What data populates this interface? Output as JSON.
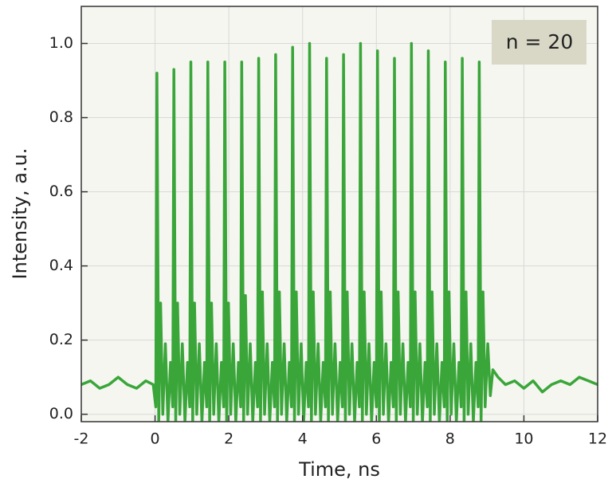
{
  "chart_data": {
    "type": "line",
    "x_label": "Time, ns",
    "y_label": "Intensity, a.u.",
    "annotation": "n = 20",
    "xlim": [
      -2,
      12
    ],
    "ylim": [
      -0.02,
      1.1
    ],
    "xticks": [
      -2,
      0,
      2,
      4,
      6,
      8,
      10,
      12
    ],
    "yticks": [
      {
        "value": 0,
        "label": "0.0"
      },
      0.2,
      0.4,
      0.6,
      0.8,
      {
        "value": 1,
        "label": "1.0"
      }
    ],
    "grid": true,
    "series": [
      {
        "color": "#3aa63a",
        "x": [
          -2,
          -1.75,
          -1.5,
          -1.25,
          -1,
          -0.75,
          -0.5,
          -0.25,
          -0.05,
          0.02,
          0.05,
          0.1,
          0.15,
          0.21,
          0.28,
          0.35,
          0.42,
          0.48,
          0.51,
          0.56,
          0.61,
          0.67,
          0.74,
          0.81,
          0.88,
          0.94,
          0.97,
          1.02,
          1.07,
          1.13,
          1.2,
          1.27,
          1.34,
          1.4,
          1.43,
          1.48,
          1.53,
          1.59,
          1.66,
          1.73,
          1.8,
          1.86,
          1.89,
          1.94,
          1.99,
          2.05,
          2.12,
          2.19,
          2.26,
          2.32,
          2.35,
          2.4,
          2.45,
          2.51,
          2.58,
          2.65,
          2.72,
          2.78,
          2.81,
          2.86,
          2.91,
          2.97,
          3.04,
          3.11,
          3.18,
          3.24,
          3.27,
          3.32,
          3.37,
          3.43,
          3.5,
          3.57,
          3.64,
          3.7,
          3.73,
          3.78,
          3.83,
          3.89,
          3.96,
          4.03,
          4.1,
          4.16,
          4.19,
          4.24,
          4.29,
          4.35,
          4.42,
          4.49,
          4.56,
          4.62,
          4.65,
          4.7,
          4.75,
          4.81,
          4.88,
          4.95,
          5.02,
          5.08,
          5.11,
          5.16,
          5.21,
          5.27,
          5.34,
          5.41,
          5.48,
          5.54,
          5.57,
          5.62,
          5.67,
          5.73,
          5.8,
          5.87,
          5.94,
          6.0,
          6.03,
          6.08,
          6.13,
          6.19,
          6.26,
          6.33,
          6.4,
          6.46,
          6.49,
          6.54,
          6.59,
          6.65,
          6.72,
          6.79,
          6.86,
          6.92,
          6.95,
          7.0,
          7.05,
          7.11,
          7.18,
          7.25,
          7.32,
          7.38,
          7.41,
          7.46,
          7.51,
          7.57,
          7.64,
          7.71,
          7.78,
          7.84,
          7.87,
          7.92,
          7.97,
          8.03,
          8.1,
          8.17,
          8.24,
          8.3,
          8.33,
          8.38,
          8.43,
          8.49,
          8.56,
          8.63,
          8.7,
          8.76,
          8.79,
          8.84,
          8.89,
          8.95,
          9.02,
          9.09,
          9.16,
          9.3,
          9.5,
          9.75,
          10,
          10.25,
          10.5,
          10.75,
          11,
          11.25,
          11.5,
          11.75,
          12
        ],
        "values": [
          0.08,
          0.09,
          0.07,
          0.08,
          0.1,
          0.08,
          0.07,
          0.09,
          0.08,
          0.02,
          0.92,
          -0.02,
          0.3,
          0.0,
          0.19,
          -0.02,
          0.14,
          0.02,
          0.93,
          -0.02,
          0.3,
          0.0,
          0.19,
          -0.02,
          0.14,
          0.02,
          0.95,
          -0.02,
          0.3,
          0.0,
          0.19,
          -0.02,
          0.14,
          0.02,
          0.95,
          -0.02,
          0.3,
          0.0,
          0.19,
          -0.02,
          0.14,
          0.02,
          0.95,
          -0.02,
          0.3,
          0.0,
          0.19,
          -0.02,
          0.14,
          0.02,
          0.95,
          -0.02,
          0.32,
          0.0,
          0.19,
          -0.02,
          0.14,
          0.02,
          0.96,
          -0.02,
          0.33,
          0.0,
          0.19,
          -0.02,
          0.14,
          0.02,
          0.97,
          -0.02,
          0.33,
          0.0,
          0.19,
          -0.02,
          0.14,
          0.02,
          0.99,
          -0.02,
          0.33,
          0.0,
          0.19,
          -0.02,
          0.14,
          0.02,
          1.0,
          -0.02,
          0.33,
          0.0,
          0.19,
          -0.02,
          0.14,
          0.02,
          0.96,
          -0.02,
          0.33,
          0.0,
          0.19,
          -0.02,
          0.14,
          0.02,
          0.97,
          -0.02,
          0.33,
          0.0,
          0.19,
          -0.02,
          0.14,
          0.02,
          1.0,
          -0.02,
          0.33,
          0.0,
          0.19,
          -0.02,
          0.14,
          0.02,
          0.98,
          -0.02,
          0.33,
          0.0,
          0.19,
          -0.02,
          0.14,
          0.02,
          0.96,
          -0.02,
          0.33,
          0.0,
          0.19,
          -0.02,
          0.14,
          0.02,
          1.0,
          -0.02,
          0.33,
          0.0,
          0.19,
          -0.02,
          0.14,
          0.02,
          0.98,
          -0.02,
          0.33,
          0.0,
          0.19,
          -0.02,
          0.14,
          0.02,
          0.95,
          -0.02,
          0.33,
          0.0,
          0.19,
          -0.02,
          0.14,
          0.02,
          0.96,
          -0.02,
          0.33,
          0.0,
          0.19,
          -0.02,
          0.14,
          0.02,
          0.95,
          -0.02,
          0.33,
          0.02,
          0.19,
          0.05,
          0.12,
          0.1,
          0.08,
          0.09,
          0.07,
          0.09,
          0.06,
          0.08,
          0.09,
          0.08,
          0.1,
          0.09,
          0.08
        ]
      }
    ]
  }
}
